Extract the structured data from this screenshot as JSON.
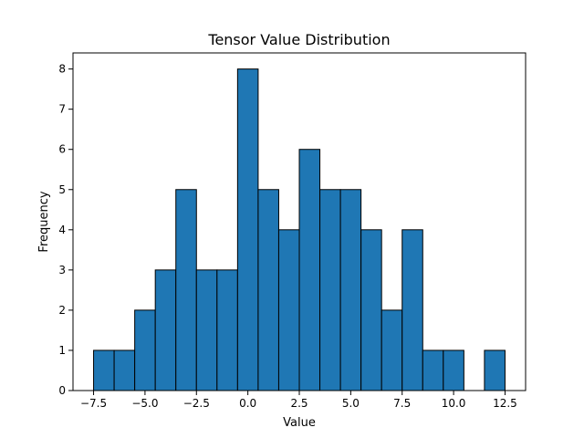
{
  "chart_data": {
    "type": "bar",
    "title": "Tensor Value Distribution",
    "xlabel": "Value",
    "ylabel": "Frequency",
    "bin_edges": [
      -7.5,
      -6.5,
      -5.5,
      -4.5,
      -3.5,
      -2.5,
      -1.5,
      -0.5,
      0.5,
      1.5,
      2.5,
      3.5,
      4.5,
      5.5,
      6.5,
      7.5,
      8.5,
      9.5,
      10.5,
      11.5,
      12.5
    ],
    "values": [
      1,
      1,
      2,
      3,
      5,
      3,
      3,
      8,
      5,
      4,
      6,
      5,
      5,
      4,
      2,
      4,
      1,
      1,
      0,
      1
    ],
    "xlim": [
      -8.5,
      13.5
    ],
    "ylim": [
      0,
      8.4
    ],
    "x_ticks": [
      -7.5,
      -5.0,
      -2.5,
      0.0,
      2.5,
      5.0,
      7.5,
      10.0,
      12.5
    ],
    "x_tick_labels": [
      "−7.5",
      "−5.0",
      "−2.5",
      "0.0",
      "2.5",
      "5.0",
      "7.5",
      "10.0",
      "12.5"
    ],
    "y_ticks": [
      0,
      1,
      2,
      3,
      4,
      5,
      6,
      7,
      8
    ],
    "y_tick_labels": [
      "0",
      "1",
      "2",
      "3",
      "4",
      "5",
      "6",
      "7",
      "8"
    ],
    "bar_color": "#1f77b4",
    "edge_color": "#000000",
    "grid": false,
    "legend": "none"
  }
}
